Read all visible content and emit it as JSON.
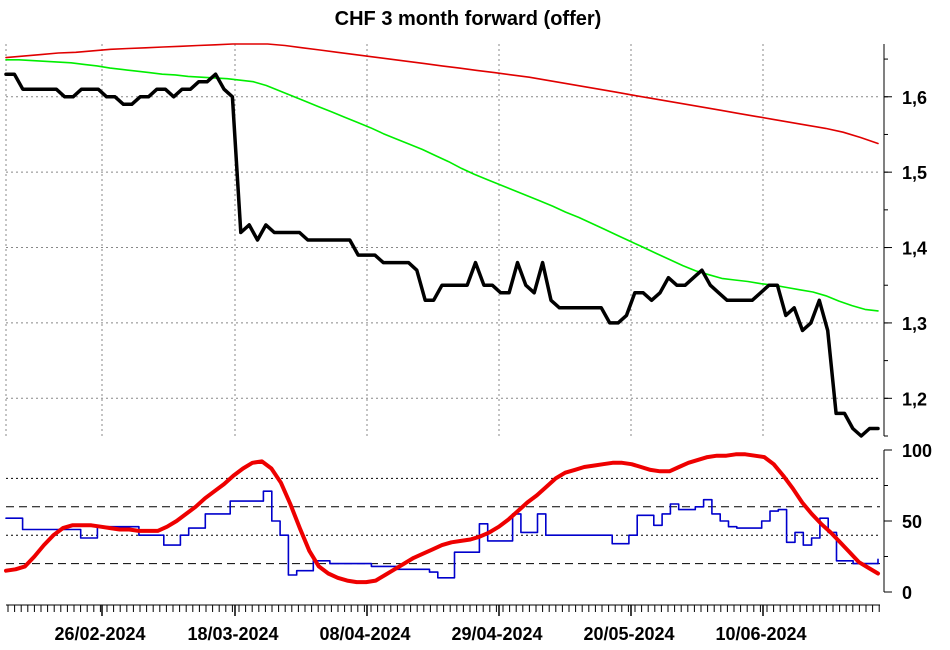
{
  "chart_data": [
    {
      "type": "line",
      "title": "CHF 3 month forward (offer)",
      "x_tick_labels": [
        "26/02-2024",
        "18/03-2024",
        "08/04-2024",
        "29/04-2024",
        "20/05-2024",
        "10/06-2024"
      ],
      "y_tick_labels": [
        "1,2",
        "1,3",
        "1,4",
        "1,5",
        "1,6"
      ],
      "ylim": [
        1.15,
        1.67
      ],
      "grid": true,
      "legend": "none",
      "series_colors": [
        "#000000",
        "#00ee00",
        "#e00000"
      ],
      "series": [
        {
          "values": [
            1.63,
            1.63,
            1.61,
            1.61,
            1.61,
            1.61,
            1.61,
            1.6,
            1.6,
            1.61,
            1.61,
            1.61,
            1.6,
            1.6,
            1.59,
            1.59,
            1.6,
            1.6,
            1.61,
            1.61,
            1.6,
            1.61,
            1.61,
            1.62,
            1.62,
            1.63,
            1.61,
            1.6,
            1.42,
            1.43,
            1.41,
            1.43,
            1.42,
            1.42,
            1.42,
            1.42,
            1.41,
            1.41,
            1.41,
            1.41,
            1.41,
            1.41,
            1.39,
            1.39,
            1.39,
            1.38,
            1.38,
            1.38,
            1.38,
            1.37,
            1.33,
            1.33,
            1.35,
            1.35,
            1.35,
            1.35,
            1.38,
            1.35,
            1.35,
            1.34,
            1.34,
            1.38,
            1.35,
            1.34,
            1.38,
            1.33,
            1.32,
            1.32,
            1.32,
            1.32,
            1.32,
            1.32,
            1.3,
            1.3,
            1.31,
            1.34,
            1.34,
            1.33,
            1.34,
            1.36,
            1.35,
            1.35,
            1.36,
            1.37,
            1.35,
            1.34,
            1.33,
            1.33,
            1.33,
            1.33,
            1.34,
            1.35,
            1.35,
            1.31,
            1.32,
            1.29,
            1.3,
            1.33,
            1.29,
            1.18,
            1.18,
            1.16,
            1.15,
            1.16,
            1.16
          ]
        },
        {
          "values": [
            1.649,
            1.649,
            1.648,
            1.647,
            1.646,
            1.645,
            1.643,
            1.641,
            1.638,
            1.636,
            1.634,
            1.632,
            1.63,
            1.629,
            1.627,
            1.626,
            1.625,
            1.624,
            1.622,
            1.62,
            1.615,
            1.608,
            1.601,
            1.594,
            1.587,
            1.58,
            1.573,
            1.566,
            1.559,
            1.551,
            1.544,
            1.537,
            1.53,
            1.522,
            1.514,
            1.505,
            1.497,
            1.49,
            1.483,
            1.476,
            1.469,
            1.462,
            1.455,
            1.447,
            1.44,
            1.432,
            1.424,
            1.416,
            1.408,
            1.4,
            1.392,
            1.384,
            1.376,
            1.369,
            1.364,
            1.359,
            1.357,
            1.355,
            1.352,
            1.35,
            1.347,
            1.344,
            1.341,
            1.336,
            1.329,
            1.323,
            1.318,
            1.316
          ]
        },
        {
          "values": [
            1.652,
            1.654,
            1.656,
            1.658,
            1.659,
            1.661,
            1.663,
            1.664,
            1.665,
            1.666,
            1.667,
            1.668,
            1.669,
            1.67,
            1.67,
            1.67,
            1.668,
            1.665,
            1.662,
            1.659,
            1.656,
            1.653,
            1.65,
            1.647,
            1.644,
            1.641,
            1.638,
            1.635,
            1.632,
            1.629,
            1.626,
            1.622,
            1.618,
            1.614,
            1.61,
            1.606,
            1.602,
            1.598,
            1.594,
            1.59,
            1.586,
            1.582,
            1.578,
            1.574,
            1.57,
            1.566,
            1.562,
            1.558,
            1.553,
            1.546,
            1.538
          ]
        }
      ]
    },
    {
      "type": "line",
      "y_tick_labels": [
        "0",
        "50",
        "100"
      ],
      "ylim": [
        0,
        100
      ],
      "reference_lines": [
        20,
        40,
        60,
        80
      ],
      "legend": "none",
      "series_colors": [
        "#0000cc",
        "#ee0000"
      ],
      "series": [
        {
          "values": [
            52,
            52,
            44,
            44,
            44,
            44,
            44,
            44,
            44,
            38,
            38,
            46,
            46,
            46,
            46,
            46,
            40,
            40,
            40,
            33,
            33,
            40,
            45,
            45,
            55,
            55,
            55,
            64,
            64,
            64,
            64,
            71,
            50,
            40,
            12,
            15,
            15,
            22,
            22,
            20,
            20,
            20,
            20,
            20,
            18,
            18,
            18,
            16,
            16,
            16,
            16,
            14,
            10,
            10,
            28,
            28,
            28,
            48,
            36,
            36,
            36,
            55,
            42,
            42,
            55,
            40,
            40,
            40,
            40,
            40,
            40,
            40,
            40,
            34,
            34,
            40,
            54,
            54,
            47,
            55,
            62,
            58,
            58,
            60,
            65,
            55,
            50,
            46,
            45,
            45,
            45,
            50,
            57,
            58,
            35,
            42,
            33,
            38,
            52,
            42,
            22,
            22,
            20,
            20,
            20,
            23
          ]
        },
        {
          "values": [
            15,
            16,
            18,
            25,
            33,
            40,
            45,
            47,
            47,
            47,
            46,
            45,
            44,
            44,
            43,
            43,
            43,
            46,
            50,
            55,
            60,
            66,
            71,
            76,
            82,
            87,
            91,
            92,
            87,
            77,
            62,
            45,
            29,
            18,
            13,
            10,
            8,
            7,
            7,
            8,
            12,
            16,
            20,
            24,
            27,
            30,
            33,
            35,
            36,
            37,
            39,
            42,
            46,
            51,
            57,
            63,
            68,
            74,
            80,
            84,
            86,
            88,
            89,
            90,
            91,
            91,
            90,
            88,
            86,
            85,
            85,
            88,
            91,
            93,
            95,
            96,
            96,
            97,
            97,
            96,
            95,
            90,
            82,
            73,
            63,
            55,
            48,
            42,
            35,
            28,
            21,
            17,
            13
          ]
        }
      ]
    }
  ]
}
